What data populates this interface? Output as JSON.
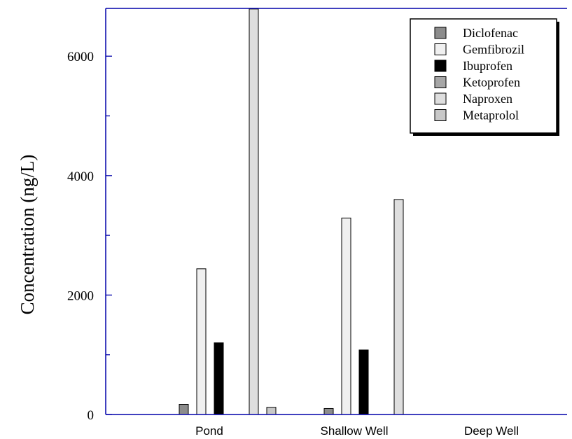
{
  "chart_data": {
    "type": "bar",
    "title": "",
    "xlabel": "",
    "ylabel": "Concentration (ng/L)",
    "ylim": [
      0,
      6800
    ],
    "yticks": [
      0,
      2000,
      4000,
      6000
    ],
    "yticks_labels": [
      "0",
      "2000",
      "4000",
      "6000"
    ],
    "categories": [
      "Pond",
      "Shallow Well",
      "Deep Well"
    ],
    "legend_position": "top-right",
    "grid": false,
    "axis_color": "#0000aa",
    "series": [
      {
        "name": "Diclofenac",
        "color": "#8c8c8c",
        "values": [
          170,
          100,
          0
        ]
      },
      {
        "name": "Gemfibrozil",
        "color": "#f0f0f0",
        "values": [
          2440,
          3290,
          0
        ]
      },
      {
        "name": "Ibuprofen",
        "color": "#000000",
        "values": [
          1200,
          1080,
          0
        ]
      },
      {
        "name": "Ketoprofen",
        "color": "#a6a6a6",
        "values": [
          0,
          0,
          0
        ]
      },
      {
        "name": "Naproxen",
        "color": "#dedede",
        "values": [
          6790,
          3600,
          0
        ]
      },
      {
        "name": "Metaprolol",
        "color": "#c8c8c8",
        "values": [
          120,
          0,
          0
        ]
      }
    ]
  }
}
